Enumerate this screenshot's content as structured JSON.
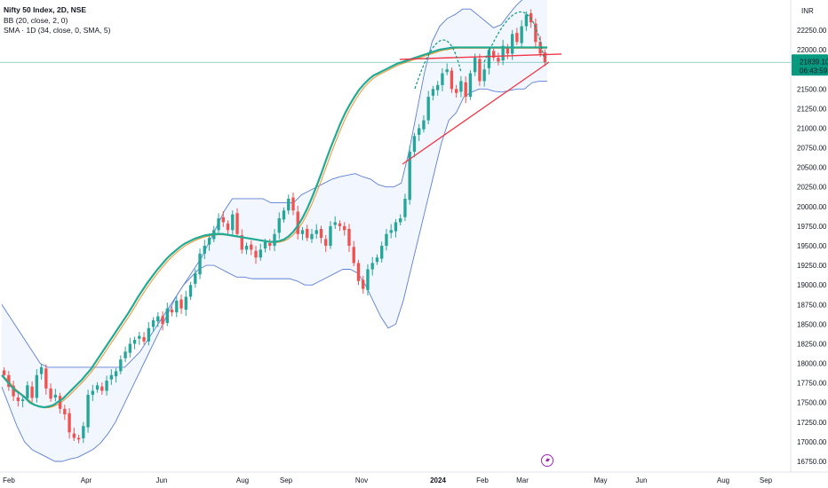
{
  "window": {
    "legend": {
      "title": "Nifty 50 Index, 2D, NSE",
      "bb": "BB (20, close, 2, 0)",
      "sma": "SMA · 1D (34, close, 0, SMA, 5)"
    },
    "currency": "INR",
    "price_tag": {
      "price": "21839.10",
      "countdown": "06:43:59"
    }
  },
  "chart_data": {
    "type": "candlestick",
    "title": "Nifty 50 Index, 2D, NSE",
    "ylim": [
      16650,
      22750
    ],
    "y_ticks": [
      16750,
      17000,
      17250,
      17500,
      17750,
      18000,
      18250,
      18500,
      18750,
      19000,
      19250,
      19500,
      19750,
      20000,
      20250,
      20500,
      20750,
      21000,
      21250,
      21500,
      21750,
      22000,
      22250
    ],
    "x_labels": [
      "Feb",
      "Apr",
      "Jun",
      "Aug",
      "Sep",
      "Nov",
      "2024",
      "Feb",
      "Mar",
      "May",
      "Jun",
      "Aug",
      "Sep"
    ],
    "last_price": 21839.1,
    "reference_level": 21840,
    "resistance_level": 21945,
    "colors": {
      "up": "#26a69a",
      "down": "#ef5350",
      "bb_band": "#5b7fd6",
      "bb_basis": "#f0922b",
      "sma": "#22ab94",
      "trendline": "#f23645",
      "price_tag": "#089981"
    },
    "close": [
      17850,
      17700,
      17580,
      17520,
      17540,
      17720,
      17560,
      17850,
      17950,
      17680,
      17550,
      17600,
      17420,
      17350,
      17120,
      17050,
      17030,
      17200,
      17600,
      17650,
      17720,
      17650,
      17780,
      17850,
      17900,
      18050,
      18150,
      18250,
      18300,
      18350,
      18280,
      18450,
      18550,
      18600,
      18500,
      18700,
      18650,
      18800,
      18700,
      18850,
      19000,
      19150,
      19400,
      19500,
      19600,
      19700,
      19850,
      19800,
      19700,
      19900,
      19650,
      19450,
      19500,
      19450,
      19350,
      19450,
      19550,
      19500,
      19650,
      19850,
      19950,
      20100,
      19950,
      19650,
      19700,
      19600,
      19650,
      19700,
      19600,
      19500,
      19750,
      19800,
      19750,
      19700,
      19500,
      19280,
      19050,
      18950,
      19200,
      19280,
      19350,
      19500,
      19650,
      19700,
      19800,
      19850,
      20100,
      20700,
      20900,
      21000,
      21100,
      21400,
      21500,
      21550,
      21700,
      21750,
      21500,
      21450,
      21600,
      21400,
      21700,
      21900,
      21600,
      21750,
      22000,
      21900,
      21850,
      22050,
      21950,
      22200,
      22100,
      22300,
      22450,
      22350,
      22100,
      21950,
      21840
    ],
    "sma34": [
      17850,
      17780,
      17710,
      17650,
      17610,
      17560,
      17500,
      17470,
      17450,
      17440,
      17450,
      17470,
      17510,
      17550,
      17610,
      17670,
      17730,
      17790,
      17860,
      17930,
      18020,
      18110,
      18200,
      18290,
      18380,
      18470,
      18560,
      18650,
      18750,
      18850,
      18940,
      19030,
      19110,
      19190,
      19260,
      19330,
      19390,
      19440,
      19490,
      19530,
      19560,
      19590,
      19610,
      19630,
      19640,
      19650,
      19650,
      19650,
      19640,
      19630,
      19620,
      19610,
      19600,
      19590,
      19580,
      19570,
      19560,
      19550,
      19550,
      19560,
      19580,
      19620,
      19680,
      19760,
      19860,
      19980,
      20120,
      20270,
      20430,
      20600,
      20760,
      20910,
      21060,
      21190,
      21300,
      21400,
      21490,
      21560,
      21620,
      21670,
      21700,
      21730,
      21760,
      21790,
      21820,
      21840,
      21860,
      21880,
      21900,
      21920,
      21940,
      21960,
      21980,
      22000,
      22010,
      22020,
      22030,
      22030,
      22030,
      22030,
      22030,
      22030,
      22030,
      22030,
      22030,
      22030,
      22030,
      22030,
      22030,
      22030,
      22030,
      22030,
      22030,
      22030,
      22030,
      22030,
      22030
    ],
    "bb_upper": [
      18750,
      18600,
      18450,
      18300,
      18150,
      18000,
      17950,
      17950,
      17950,
      17950,
      17950,
      17950,
      17950,
      17950,
      17950,
      17950,
      17950,
      18050,
      18150,
      18300,
      18450,
      18600,
      18750,
      18900,
      19050,
      19200,
      19350,
      19550,
      19750,
      19950,
      20100,
      20100,
      20100,
      20100,
      20100,
      20050,
      20050,
      20050,
      20050,
      20150,
      20200,
      20250,
      20300,
      20350,
      20380,
      20400,
      20420,
      20380,
      20350,
      20280,
      20250,
      20250,
      20300,
      20700,
      21200,
      21700,
      22100,
      22300,
      22400,
      22450,
      22520,
      22520,
      22440,
      22360,
      22280,
      22320,
      22450,
      22570,
      22660,
      22670,
      22720,
      22650
    ],
    "bb_lower": [
      17700,
      17450,
      17200,
      17000,
      16900,
      16850,
      16800,
      16750,
      16750,
      16780,
      16800,
      16850,
      16900,
      16980,
      17100,
      17250,
      17450,
      17650,
      17850,
      18050,
      18250,
      18450,
      18650,
      18850,
      19000,
      19100,
      19200,
      19250,
      19250,
      19200,
      19150,
      19100,
      19100,
      19080,
      19080,
      19080,
      19080,
      19080,
      19080,
      19050,
      19000,
      19000,
      19050,
      19100,
      19150,
      19200,
      19200,
      19150,
      19000,
      18800,
      18600,
      18450,
      18500,
      18800,
      19200,
      19600,
      20000,
      20400,
      20800,
      21100,
      21200,
      21400,
      21460,
      21500,
      21500,
      21470,
      21460,
      21480,
      21500,
      21500,
      21580,
      21600,
      21600
    ]
  }
}
